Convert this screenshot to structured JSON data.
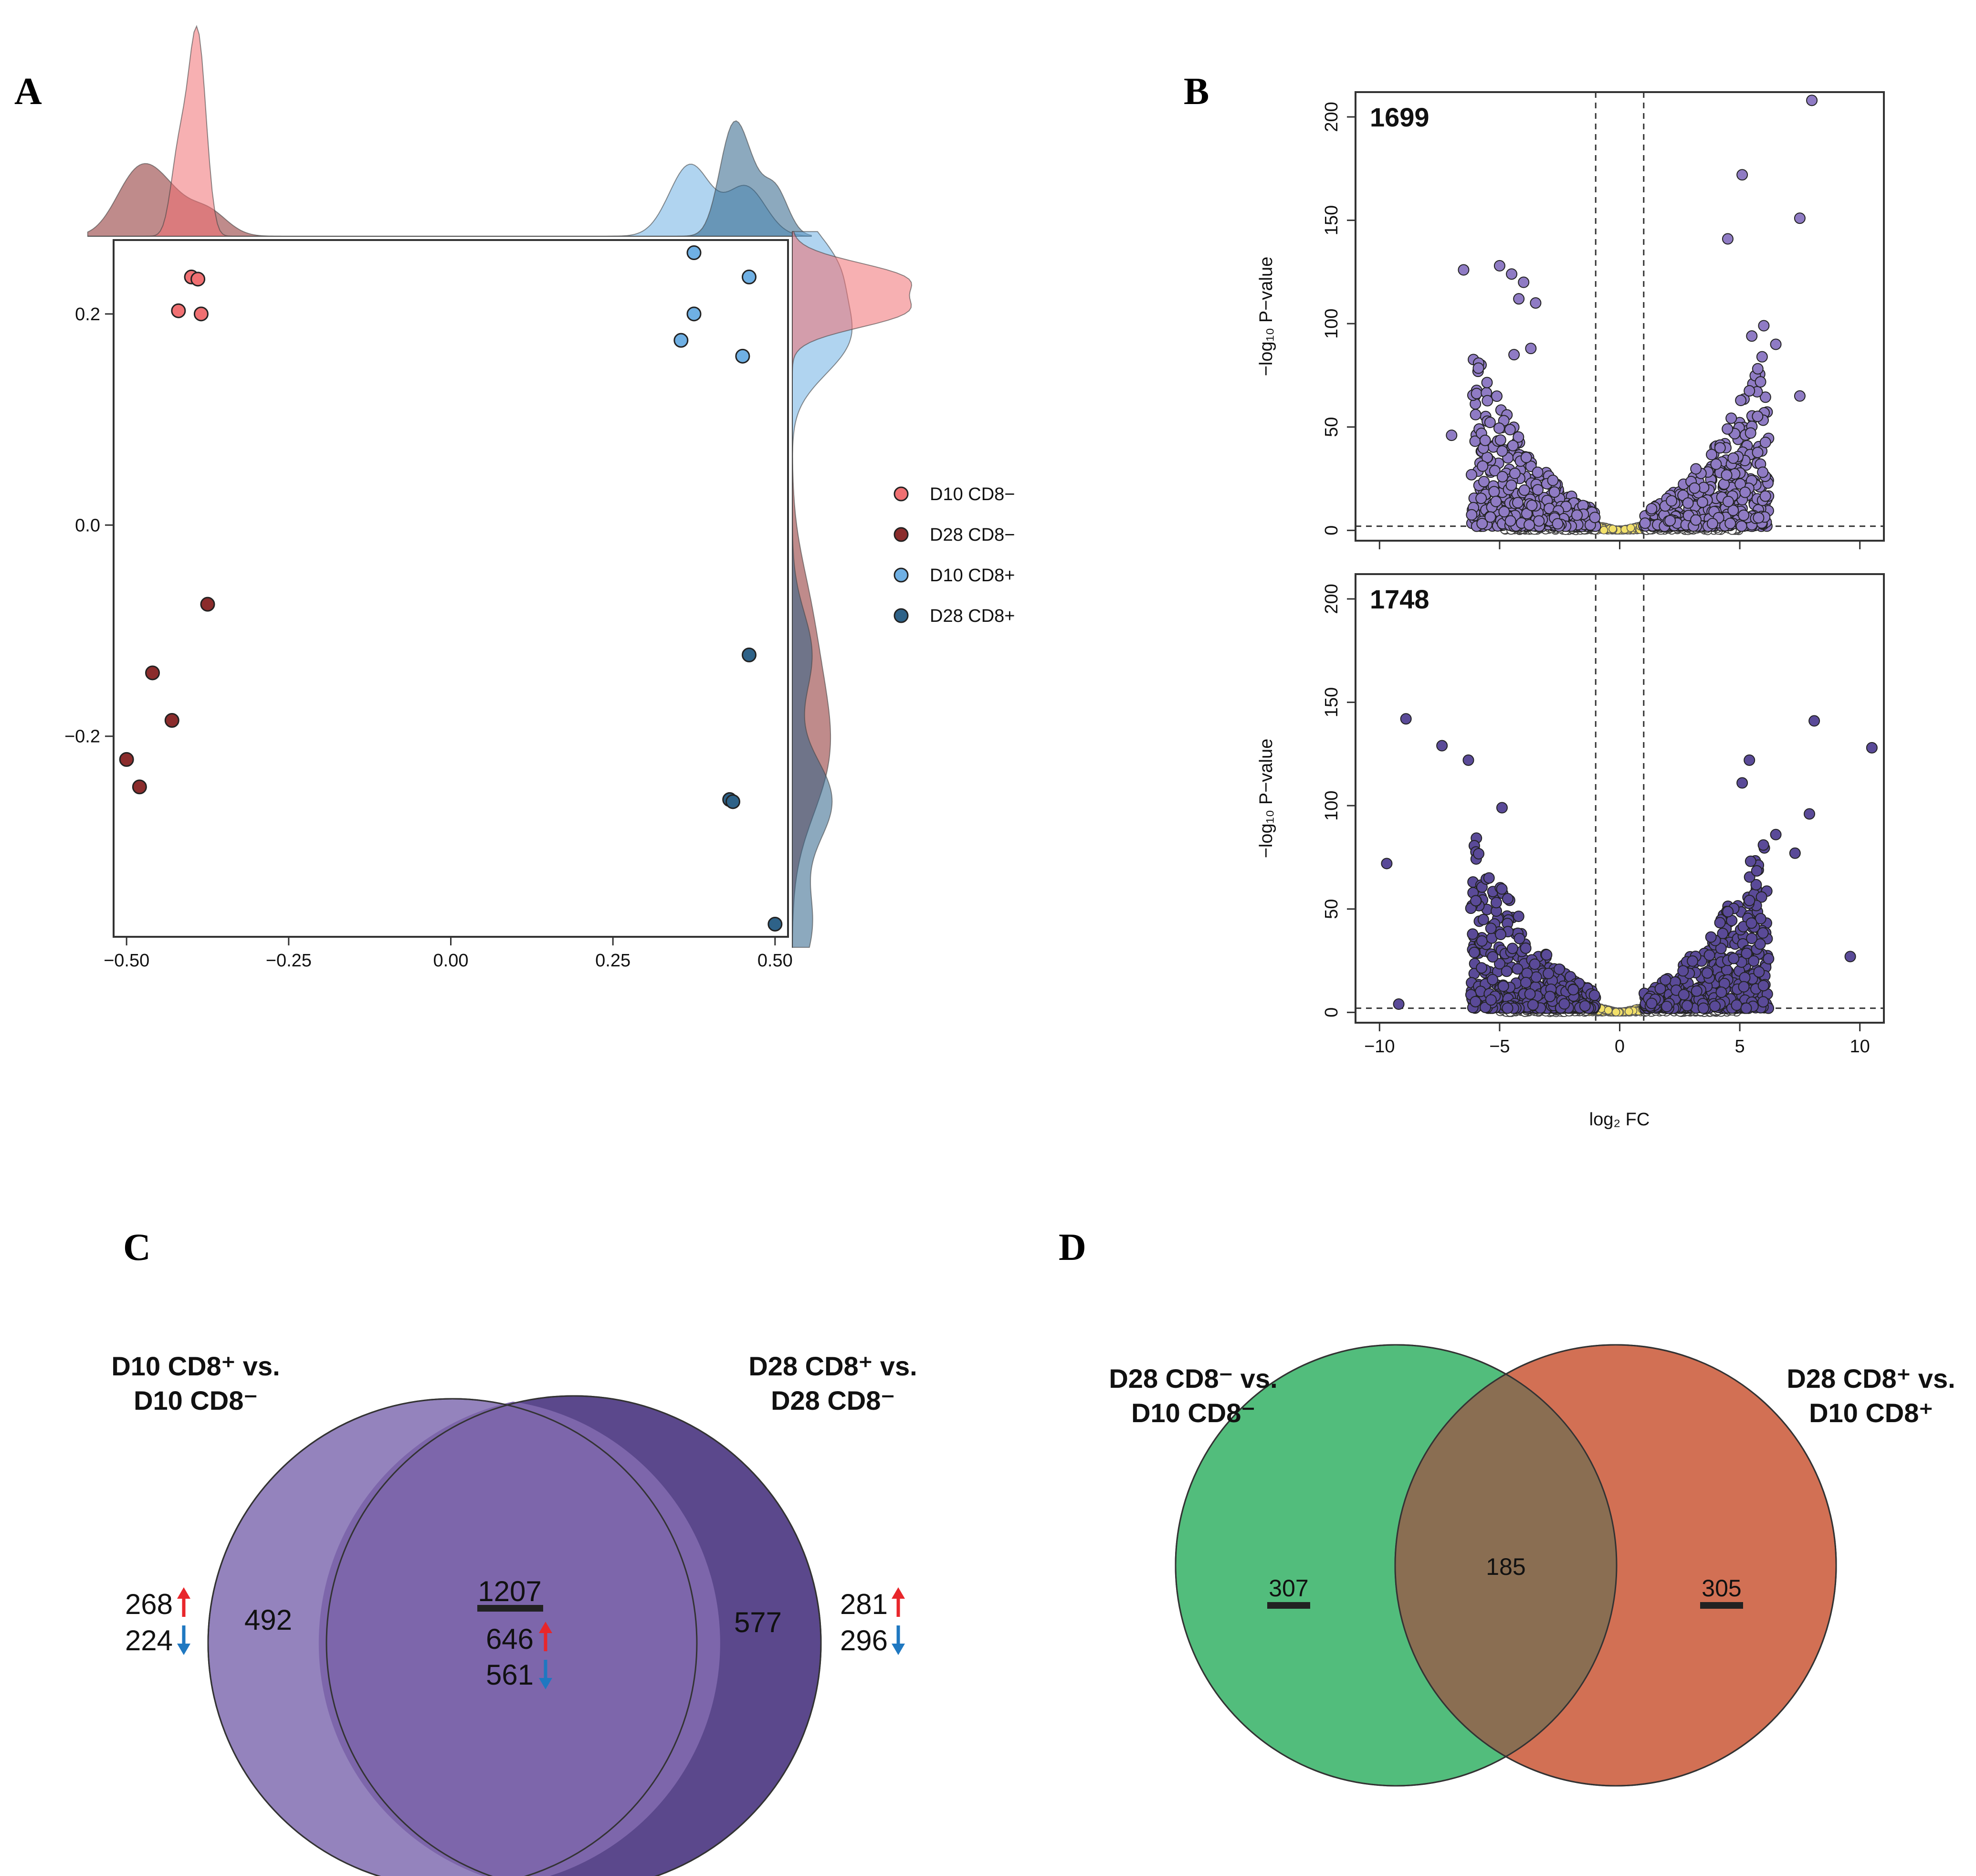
{
  "panels": {
    "A": "A",
    "B": "B",
    "C": "C",
    "D": "D"
  },
  "chart_data": [
    {
      "type": "scatter",
      "panel": "A",
      "title": "",
      "xlabel": "",
      "ylabel": "",
      "xlim": [
        -0.52,
        0.52
      ],
      "ylim": [
        -0.39,
        0.27
      ],
      "x_ticks": [
        "-0.50",
        "-0.25",
        "0.00",
        "0.25",
        "0.50"
      ],
      "x_tick_values": [
        -0.5,
        -0.25,
        0,
        0.25,
        0.5
      ],
      "y_ticks": [
        "0.2",
        "0.0",
        "-0.2"
      ],
      "y_tick_values": [
        0.2,
        0.0,
        -0.2
      ],
      "legend_position": "right",
      "marginal_densities": "top and right, one per group",
      "series": [
        {
          "name": "D10 CD8−",
          "color": "#f07072",
          "points": [
            [
              -0.4,
              0.235
            ],
            [
              -0.39,
              0.233
            ],
            [
              -0.42,
              0.203
            ],
            [
              -0.385,
              0.2
            ]
          ]
        },
        {
          "name": "D28 CD8−",
          "color": "#8b2c2c",
          "points": [
            [
              -0.375,
              -0.075
            ],
            [
              -0.46,
              -0.14
            ],
            [
              -0.43,
              -0.185
            ],
            [
              -0.5,
              -0.222
            ],
            [
              -0.48,
              -0.248
            ]
          ]
        },
        {
          "name": "D10 CD8+",
          "color": "#6fb0e4",
          "points": [
            [
              0.375,
              0.258
            ],
            [
              0.46,
              0.235
            ],
            [
              0.375,
              0.2
            ],
            [
              0.355,
              0.175
            ],
            [
              0.45,
              0.16
            ]
          ]
        },
        {
          "name": "D28 CD8+",
          "color": "#2e6288",
          "points": [
            [
              0.46,
              -0.123
            ],
            [
              0.43,
              -0.26
            ],
            [
              0.435,
              -0.262
            ],
            [
              0.5,
              -0.378
            ]
          ]
        }
      ]
    },
    {
      "type": "scatter",
      "panel": "B-top",
      "subtype": "volcano",
      "count_label": "1699",
      "xlabel": "log₂ FC",
      "ylabel": "−log₁₀ P−value",
      "xlim": [
        -11,
        11
      ],
      "ylim": [
        -5,
        212
      ],
      "x_tick_values": [
        -10,
        -5,
        0,
        5,
        10
      ],
      "y_ticks": [
        "0",
        "50",
        "100",
        "150",
        "200"
      ],
      "y_tick_values": [
        0,
        50,
        100,
        150,
        200
      ],
      "fc_threshold": [
        -1,
        1
      ],
      "p_threshold_line": 2,
      "significant_color": "#8f7bc4",
      "highlighted_points": [
        [
          8,
          208
        ],
        [
          5.1,
          172
        ],
        [
          7.5,
          151
        ],
        [
          4.5,
          141
        ],
        [
          -6.5,
          126
        ],
        [
          -5,
          128
        ],
        [
          -4.5,
          124
        ],
        [
          -4,
          120
        ],
        [
          -4.2,
          112
        ],
        [
          -3.5,
          110
        ],
        [
          6,
          99
        ],
        [
          5.5,
          94
        ],
        [
          6.5,
          90
        ],
        [
          -3.7,
          88
        ],
        [
          -4.4,
          85
        ],
        [
          7.5,
          65
        ],
        [
          -6,
          56
        ],
        [
          -7,
          46
        ]
      ]
    },
    {
      "type": "scatter",
      "panel": "B-bottom",
      "subtype": "volcano",
      "count_label": "1748",
      "xlabel": "log₂ FC",
      "ylabel": "−log₁₀ P−value",
      "xlim": [
        -11,
        11
      ],
      "ylim": [
        -5,
        212
      ],
      "x_ticks": [
        "−10",
        "−5",
        "0",
        "5",
        "10"
      ],
      "x_tick_values": [
        -10,
        -5,
        0,
        5,
        10
      ],
      "y_ticks": [
        "0",
        "50",
        "100",
        "150",
        "200"
      ],
      "y_tick_values": [
        0,
        50,
        100,
        150,
        200
      ],
      "fc_threshold": [
        -1,
        1
      ],
      "p_threshold_line": 2,
      "significant_color": "#5a4a98",
      "highlighted_points": [
        [
          10.5,
          128
        ],
        [
          8.1,
          141
        ],
        [
          -8.9,
          142
        ],
        [
          -7.4,
          129
        ],
        [
          -6.3,
          122
        ],
        [
          5.4,
          122
        ],
        [
          5.1,
          111
        ],
        [
          -4.9,
          99
        ],
        [
          7.9,
          96
        ],
        [
          -9.7,
          72
        ],
        [
          -9.2,
          4
        ],
        [
          6.5,
          86
        ],
        [
          9.6,
          27
        ],
        [
          7.3,
          77
        ]
      ]
    },
    {
      "type": "venn",
      "panel": "C",
      "sets": [
        {
          "title_line1": "D10 CD8⁺ vs.",
          "title_line2": "D10 CD8⁻",
          "color": "#9483bd",
          "unique": "492",
          "up": "268",
          "down": "224"
        },
        {
          "title_line1": "D28 CD8⁺ vs.",
          "title_line2": "D28 CD8⁻",
          "color": "#5b488c",
          "unique": "577",
          "up": "281",
          "down": "296"
        }
      ],
      "intersection": {
        "total": "1207",
        "up": "646",
        "down": "561",
        "color": "#7d66ab"
      }
    },
    {
      "type": "venn",
      "panel": "D",
      "sets": [
        {
          "title_line1": "D28 CD8⁻ vs.",
          "title_line2": "D10 CD8⁻",
          "color": "#52bd7c",
          "unique": "307"
        },
        {
          "title_line1": "D28 CD8⁺ vs.",
          "title_line2": "D10 CD8⁺",
          "color": "#d27054",
          "unique": "305"
        }
      ],
      "intersection": {
        "total": "185",
        "color": "#8a6e52"
      }
    }
  ]
}
